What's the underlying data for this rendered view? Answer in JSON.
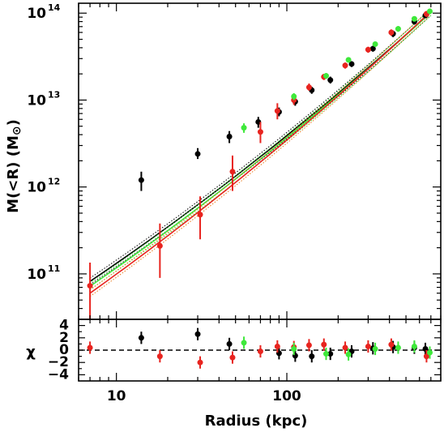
{
  "chart_data": [
    {
      "type": "scatter",
      "panel": "mass",
      "xlabel": "Radius (kpc)",
      "ylabel": "M(<R) (M",
      "ylabel_symbol": "⊙",
      "ylabel_close": ")",
      "xscale": "log",
      "yscale": "log",
      "xlim": [
        6,
        800
      ],
      "ylim": [
        30000000000.0,
        130000000000000.0
      ],
      "y_ticks": [
        {
          "base": "10",
          "exp": "11",
          "value": 100000000000.0
        },
        {
          "base": "10",
          "exp": "12",
          "value": 1000000000000.0
        },
        {
          "base": "10",
          "exp": "13",
          "value": 10000000000000.0
        },
        {
          "base": "10",
          "exp": "14",
          "value": 100000000000000.0
        }
      ],
      "colors": {
        "black": "#000000",
        "red": "#e8241f",
        "green": "#3ee83a",
        "orange": "#e87a1a"
      },
      "models": [
        {
          "color": "#000000",
          "y_at_7": 82000000000.0,
          "y_at_700": 102000000000000.0
        },
        {
          "color": "#3ee83a",
          "y_at_7": 72000000000.0,
          "y_at_700": 102000000000000.0
        },
        {
          "color": "#e8241f",
          "y_at_7": 60000000000.0,
          "y_at_700": 105000000000000.0
        }
      ],
      "series": [
        {
          "color": "#000000",
          "points": [
            {
              "x": 14,
              "y": 1200000000000.0,
              "lo": 900000000000.0,
              "hi": 1500000000000.0
            },
            {
              "x": 30,
              "y": 2400000000000.0,
              "lo": 2100000000000.0,
              "hi": 2800000000000.0
            },
            {
              "x": 46,
              "y": 3800000000000.0,
              "lo": 3200000000000.0,
              "hi": 4400000000000.0
            },
            {
              "x": 68,
              "y": 5600000000000.0,
              "lo": 4800000000000.0,
              "hi": 6400000000000.0
            },
            {
              "x": 90,
              "y": 7300000000000.0,
              "lo": 6500000000000.0,
              "hi": 8200000000000.0
            },
            {
              "x": 112,
              "y": 9600000000000.0,
              "lo": 8600000000000.0,
              "hi": 10700000000000.0
            },
            {
              "x": 140,
              "y": 13000000000000.0,
              "lo": 11800000000000.0,
              "hi": 14200000000000.0
            },
            {
              "x": 180,
              "y": 17000000000000.0,
              "lo": 15500000000000.0,
              "hi": 18600000000000.0
            },
            {
              "x": 240,
              "y": 26000000000000.0,
              "lo": 24000000000000.0,
              "hi": 28000000000000.0
            },
            {
              "x": 320,
              "y": 39000000000000.0,
              "lo": 36000000000000.0,
              "hi": 42000000000000.0
            },
            {
              "x": 420,
              "y": 58000000000000.0,
              "lo": 53000000000000.0,
              "hi": 63000000000000.0
            },
            {
              "x": 560,
              "y": 80000000000000.0,
              "lo": 74000000000000.0,
              "hi": 86000000000000.0
            },
            {
              "x": 650,
              "y": 94000000000000.0,
              "lo": 88000000000000.0,
              "hi": 100000000000000.0
            }
          ]
        },
        {
          "color": "#e8241f",
          "points": [
            {
              "x": 7,
              "y": 73000000000.0,
              "lo": 30000000000.0,
              "hi": 135000000000.0
            },
            {
              "x": 18,
              "y": 210000000000.0,
              "lo": 90000000000.0,
              "hi": 380000000000.0
            },
            {
              "x": 31,
              "y": 480000000000.0,
              "lo": 250000000000.0,
              "hi": 780000000000.0
            },
            {
              "x": 48,
              "y": 1500000000000.0,
              "lo": 900000000000.0,
              "hi": 2300000000000.0
            },
            {
              "x": 70,
              "y": 4300000000000.0,
              "lo": 3200000000000.0,
              "hi": 5600000000000.0
            },
            {
              "x": 88,
              "y": 7500000000000.0,
              "lo": 6000000000000.0,
              "hi": 9200000000000.0
            },
            {
              "x": 110,
              "y": 10000000000000.0,
              "lo": 8800000000000.0,
              "hi": 11500000000000.0
            },
            {
              "x": 135,
              "y": 14000000000000.0,
              "lo": 12800000000000.0,
              "hi": 15500000000000.0
            },
            {
              "x": 165,
              "y": 18500000000000.0,
              "lo": 17000000000000.0,
              "hi": 20000000000000.0
            },
            {
              "x": 220,
              "y": 25000000000000.0,
              "lo": 23000000000000.0,
              "hi": 27000000000000.0
            },
            {
              "x": 300,
              "y": 38000000000000.0,
              "lo": 35000000000000.0,
              "hi": 41000000000000.0
            },
            {
              "x": 410,
              "y": 60000000000000.0,
              "lo": 55000000000000.0,
              "hi": 65000000000000.0
            },
            {
              "x": 660,
              "y": 98000000000000.0,
              "lo": 90000000000000.0,
              "hi": 106000000000000.0
            }
          ]
        },
        {
          "color": "#3ee83a",
          "points": [
            {
              "x": 56,
              "y": 4800000000000.0,
              "lo": 4200000000000.0,
              "hi": 5400000000000.0
            },
            {
              "x": 110,
              "y": 11000000000000.0,
              "lo": 10000000000000.0,
              "hi": 12000000000000.0
            },
            {
              "x": 170,
              "y": 19000000000000.0,
              "lo": 17500000000000.0,
              "hi": 20500000000000.0
            },
            {
              "x": 230,
              "y": 29000000000000.0,
              "lo": 27000000000000.0,
              "hi": 31000000000000.0
            },
            {
              "x": 330,
              "y": 44000000000000.0,
              "lo": 41000000000000.0,
              "hi": 47000000000000.0
            },
            {
              "x": 450,
              "y": 66000000000000.0,
              "lo": 61000000000000.0,
              "hi": 71000000000000.0
            },
            {
              "x": 560,
              "y": 86000000000000.0,
              "lo": 80000000000000.0,
              "hi": 92000000000000.0
            },
            {
              "x": 690,
              "y": 105000000000000.0,
              "lo": 98000000000000.0,
              "hi": 112000000000000.0
            }
          ]
        }
      ]
    },
    {
      "type": "scatter",
      "panel": "residuals",
      "ylabel": "χ",
      "xscale": "log",
      "xlim": [
        6,
        800
      ],
      "ylim": [
        -5,
        5
      ],
      "y_ticks": [
        -4,
        -2,
        0,
        2,
        4
      ],
      "y_tick_labels": [
        "−4",
        "−2",
        "0",
        "2",
        "4"
      ],
      "x_ticks": [
        {
          "label": "10",
          "value": 10
        },
        {
          "label": "100",
          "value": 100
        }
      ],
      "zero_line": "dashed",
      "series": [
        {
          "color": "#000000",
          "points": [
            {
              "x": 14,
              "y": 2.0,
              "err": 1.0
            },
            {
              "x": 30,
              "y": 2.6,
              "err": 1.0
            },
            {
              "x": 46,
              "y": 1.0,
              "err": 1.0
            },
            {
              "x": 90,
              "y": -0.5,
              "err": 1.0
            },
            {
              "x": 112,
              "y": -0.9,
              "err": 1.0
            },
            {
              "x": 140,
              "y": -1.0,
              "err": 1.0
            },
            {
              "x": 180,
              "y": -0.6,
              "err": 1.0
            },
            {
              "x": 240,
              "y": -0.2,
              "err": 1.0
            },
            {
              "x": 320,
              "y": 0.3,
              "err": 1.0
            },
            {
              "x": 420,
              "y": 0.5,
              "err": 1.0
            },
            {
              "x": 560,
              "y": 0.4,
              "err": 1.0
            },
            {
              "x": 650,
              "y": 0.2,
              "err": 1.0
            }
          ]
        },
        {
          "color": "#e8241f",
          "points": [
            {
              "x": 7,
              "y": 0.4,
              "err": 1.0
            },
            {
              "x": 18,
              "y": -1.0,
              "err": 1.0
            },
            {
              "x": 31,
              "y": -2.0,
              "err": 1.0
            },
            {
              "x": 48,
              "y": -1.2,
              "err": 1.0
            },
            {
              "x": 70,
              "y": -0.2,
              "err": 1.0
            },
            {
              "x": 88,
              "y": 0.6,
              "err": 1.0
            },
            {
              "x": 110,
              "y": 0.5,
              "err": 1.0
            },
            {
              "x": 135,
              "y": 0.8,
              "err": 1.0
            },
            {
              "x": 165,
              "y": 0.9,
              "err": 1.0
            },
            {
              "x": 220,
              "y": 0.4,
              "err": 1.0
            },
            {
              "x": 300,
              "y": 0.6,
              "err": 1.0
            },
            {
              "x": 410,
              "y": 0.9,
              "err": 1.0
            },
            {
              "x": 660,
              "y": -1.0,
              "err": 1.0
            }
          ]
        },
        {
          "color": "#3ee83a",
          "points": [
            {
              "x": 56,
              "y": 1.2,
              "err": 1.0
            },
            {
              "x": 110,
              "y": 0.2,
              "err": 1.0
            },
            {
              "x": 170,
              "y": -0.6,
              "err": 1.0
            },
            {
              "x": 230,
              "y": -0.7,
              "err": 1.0
            },
            {
              "x": 330,
              "y": 0.2,
              "err": 1.0
            },
            {
              "x": 450,
              "y": 0.4,
              "err": 1.0
            },
            {
              "x": 560,
              "y": 0.6,
              "err": 1.0
            },
            {
              "x": 690,
              "y": -0.4,
              "err": 1.0
            }
          ]
        }
      ]
    }
  ]
}
